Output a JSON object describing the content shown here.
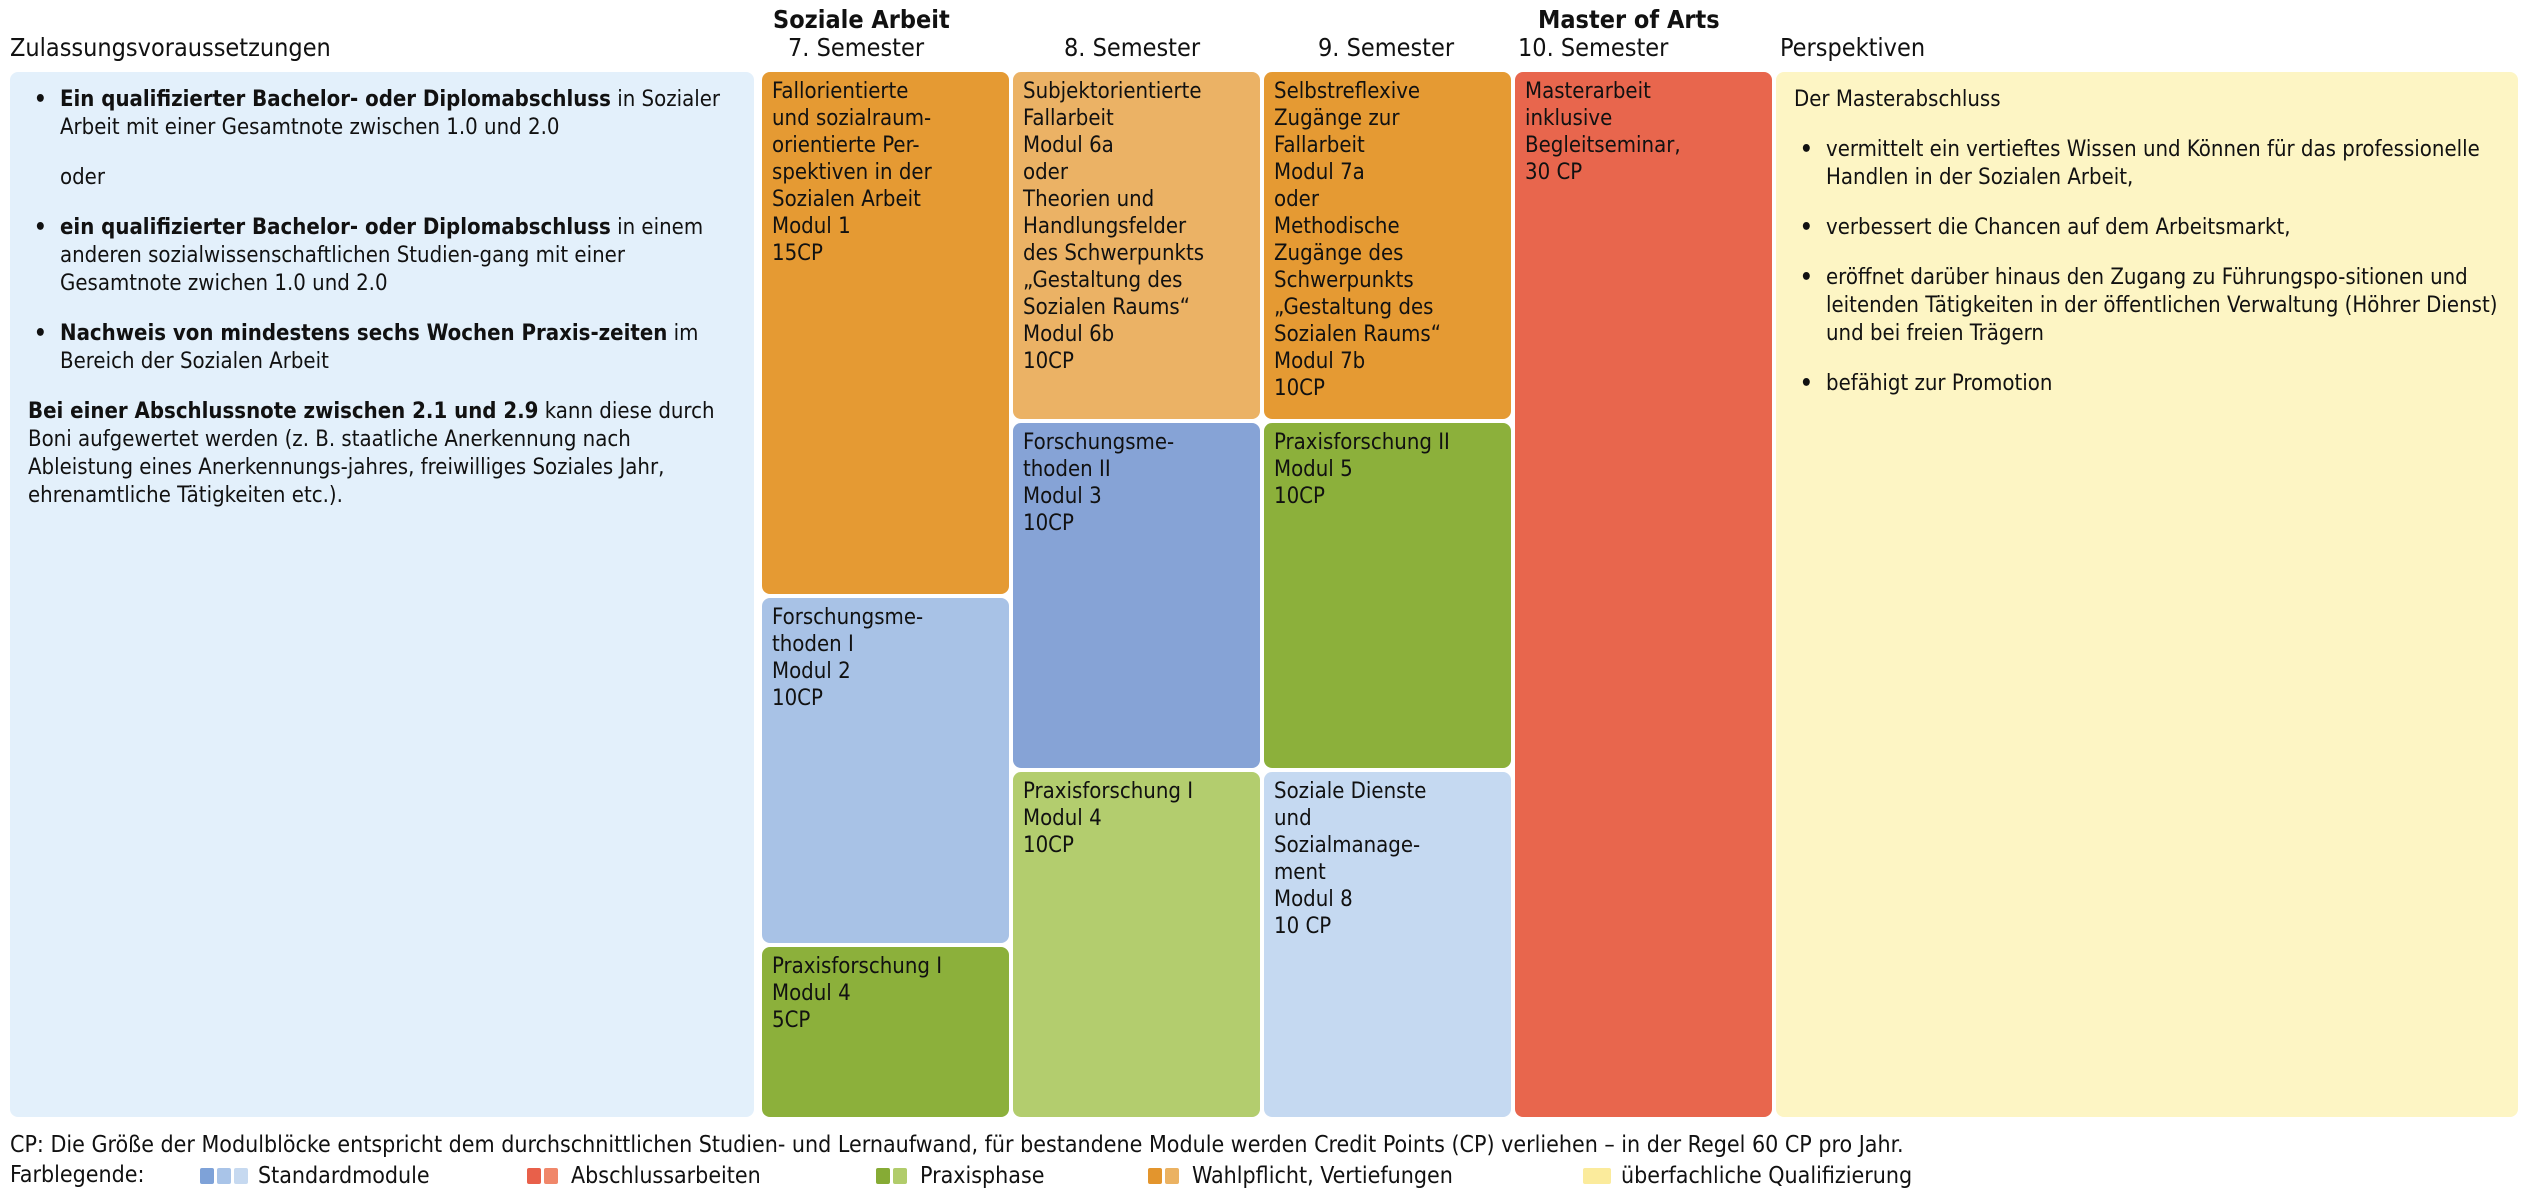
{
  "headers": {
    "requirements": "Zulassungsvoraussetzungen",
    "program": "Soziale Arbeit",
    "sem7": "7. Semester",
    "sem8": "8. Semester",
    "sem9": "9. Semester",
    "degree": "Master of Arts",
    "sem10": "10. Semester",
    "perspectives": "Perspektiven"
  },
  "requirements": {
    "item1_bold": "Ein qualifizierter Bachelor- oder Diplomabschluss",
    "item1_rest": "in Sozialer Arbeit mit einer Gesamtnote zwischen 1.0 und 2.0",
    "or": "oder",
    "item2_bold": "ein qualifizierter Bachelor- oder Diplomabschluss",
    "item2_rest": "in einem anderen sozialwissenschaftlichen Studien-gang mit einer Gesamtnote zwichen 1.0 und 2.0",
    "item3_bold": "Nachweis von mindestens sechs Wochen Praxis-zeiten",
    "item3_rest": "im Bereich der Sozialen Arbeit",
    "note_bold": "Bei einer Abschlussnote zwischen 2.1 und 2.9",
    "note_rest": "kann diese durch Boni aufgewertet werden (z. B. staatliche Anerkennung nach Ableistung eines Anerkennungs-jahres, freiwilliges Soziales Jahr, ehrenamtliche Tätigkeiten etc.)."
  },
  "modules": {
    "m1": [
      "Fallorientierte",
      "und sozialraum-",
      "orientierte Per-",
      "spektiven in der",
      "Sozialen Arbeit",
      "Modul 1",
      "15CP"
    ],
    "m2": [
      "Forschungsme-",
      "thoden I",
      "Modul 2",
      "10CP"
    ],
    "m4a": [
      "Praxisforschung I",
      "Modul 4",
      "5CP"
    ],
    "m6": [
      "Subjektorientierte",
      "Fallarbeit",
      "Modul 6a",
      "oder",
      "Theorien und",
      "Handlungsfelder",
      "des Schwerpunkts",
      "„Gestaltung des",
      "Sozialen Raums“",
      "Modul 6b",
      "10CP"
    ],
    "m3": [
      "Forschungsme-",
      "thoden II",
      "Modul 3",
      "10CP"
    ],
    "m4b": [
      "Praxisforschung I",
      "Modul 4",
      "10CP"
    ],
    "m7": [
      "Selbstreflexive",
      "Zugänge zur",
      "Fallarbeit",
      "Modul 7a",
      "oder",
      "Methodische",
      "Zugänge des",
      "Schwerpunkts",
      "„Gestaltung des",
      "Sozialen Raums“",
      "Modul 7b",
      "10CP"
    ],
    "m5": [
      "Praxisforschung II",
      "Modul 5",
      "10CP"
    ],
    "m8": [
      "Soziale Dienste",
      "und",
      "Sozialmanage-",
      "ment",
      "Modul 8",
      "10 CP"
    ],
    "m10": [
      "Masterarbeit",
      "inklusive",
      "Begleitseminar,",
      "30 CP"
    ]
  },
  "perspectives": {
    "intro": "Der Masterabschluss",
    "items": [
      "vermittelt ein vertieftes Wissen und Können für das professionelle Handlen in der Sozialen Arbeit,",
      "verbessert die Chancen auf dem Arbeitsmarkt,",
      "eröffnet darüber hinaus den Zugang zu Führungspo-sitionen und leitenden Tätigkeiten in der öffentlichen Verwaltung (Höhrer Dienst) und bei freien Trägern",
      "befähigt zur Promotion"
    ]
  },
  "footer": {
    "note": "CP: Die Größe der Modulblöcke entspricht dem durchschnittlichen Studien- und Lernaufwand, für bestandene Module werden Credit Points (CP) verliehen – in der Regel 60 CP pro Jahr.",
    "legend_title": "Farblegende:",
    "legend": [
      {
        "label": "Standardmodule",
        "colors": [
          "#7ea2d8",
          "#a9c4e8",
          "#c6d9f0"
        ]
      },
      {
        "label": "Abschlussarbeiten",
        "colors": [
          "#e8604a",
          "#f0876a"
        ]
      },
      {
        "label": "Praxisphase",
        "colors": [
          "#86ab35",
          "#b1cc6b"
        ]
      },
      {
        "label": "Wahlpflicht, Vertiefungen",
        "colors": [
          "#e3952d",
          "#ebb262"
        ]
      },
      {
        "label": "überfachliche Qualifizierung",
        "colors": [
          "#fbeb9c"
        ]
      }
    ]
  },
  "colors": {
    "standard_dark": "#86a3d6",
    "standard_mid": "#a8c2e6",
    "standard_light": "#c5d9f1",
    "thesis": "#e8664d",
    "practice_dark": "#8cb03b",
    "practice_light": "#b3cd6e",
    "elective_dark": "#e59a33",
    "elective_light": "#ebb265",
    "requirements_bg": "#e3f0fb",
    "perspectives_bg": "#fdf5c4"
  }
}
